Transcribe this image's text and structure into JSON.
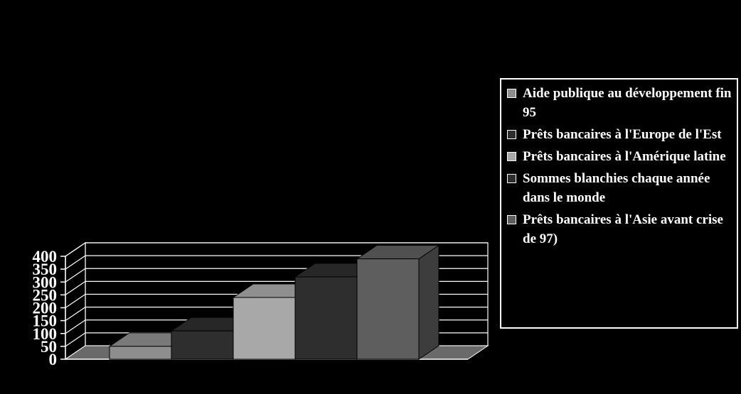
{
  "chart_data": {
    "type": "bar",
    "categories": [
      "Aide publique au développement fin 95",
      "Prêts bancaires à l'Europe de l'Est",
      "Prêts bancaires à l'Amérique latine",
      "Sommes blanchies chaque année dans le monde",
      "Prêts bancaires à l'Asie avant crise de 97)"
    ],
    "values": [
      50,
      110,
      240,
      320,
      390
    ],
    "colors": [
      "#8e8e8e",
      "#2e2e2e",
      "#a8a8a8",
      "#2e2e2e",
      "#5e5e5e"
    ],
    "ylim": [
      0,
      400
    ],
    "yticks": [
      "0",
      "50",
      "100",
      "150",
      "200",
      "250",
      "300",
      "350",
      "400"
    ],
    "grid": true,
    "legend_position": "right",
    "title": "",
    "xlabel": "",
    "ylabel": ""
  }
}
